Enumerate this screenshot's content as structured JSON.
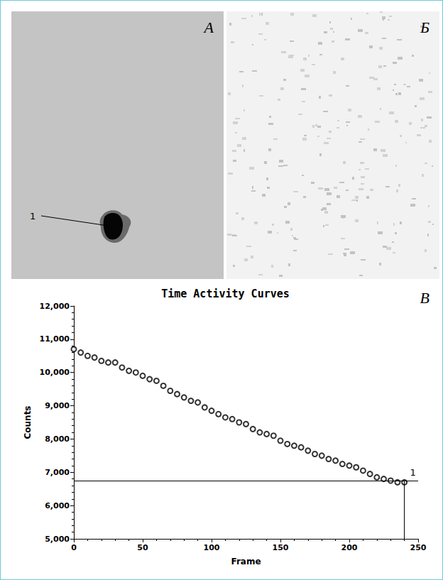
{
  "panels": [
    {
      "label": "A",
      "annotation": "1"
    },
    {
      "label": "Б"
    },
    {
      "label": "В"
    }
  ],
  "chart_data": {
    "type": "scatter",
    "title": "Time Activity Curves",
    "x_label": "Frame",
    "y_label": "Counts",
    "x": [
      0,
      5,
      10,
      15,
      20,
      25,
      30,
      35,
      40,
      45,
      50,
      55,
      60,
      65,
      70,
      75,
      80,
      85,
      90,
      95,
      100,
      105,
      110,
      115,
      120,
      125,
      130,
      135,
      140,
      145,
      150,
      155,
      160,
      165,
      170,
      175,
      180,
      185,
      190,
      195,
      200,
      205,
      210,
      215,
      220,
      225,
      230,
      235,
      240
    ],
    "values": [
      10700,
      10600,
      10500,
      10450,
      10350,
      10300,
      10300,
      10150,
      10050,
      10000,
      9900,
      9800,
      9750,
      9600,
      9450,
      9350,
      9250,
      9150,
      9100,
      8950,
      8850,
      8750,
      8650,
      8600,
      8500,
      8450,
      8300,
      8200,
      8150,
      8100,
      7950,
      7850,
      7800,
      7750,
      7650,
      7550,
      7500,
      7400,
      7350,
      7250,
      7200,
      7150,
      7050,
      6950,
      6850,
      6800,
      6750,
      6700,
      6700
    ],
    "color": "#000000",
    "marker": "emptyCircle",
    "xlim": [
      0,
      250
    ],
    "xticks": [
      0,
      50,
      100,
      150,
      200,
      250
    ],
    "ylim": [
      5000,
      12000
    ],
    "yticks": [
      5000,
      6000,
      7000,
      8000,
      9000,
      10000,
      11000,
      12000
    ],
    "grid": false,
    "annotations": [
      {
        "text": "1",
        "x": 240,
        "y": 6750
      }
    ]
  }
}
